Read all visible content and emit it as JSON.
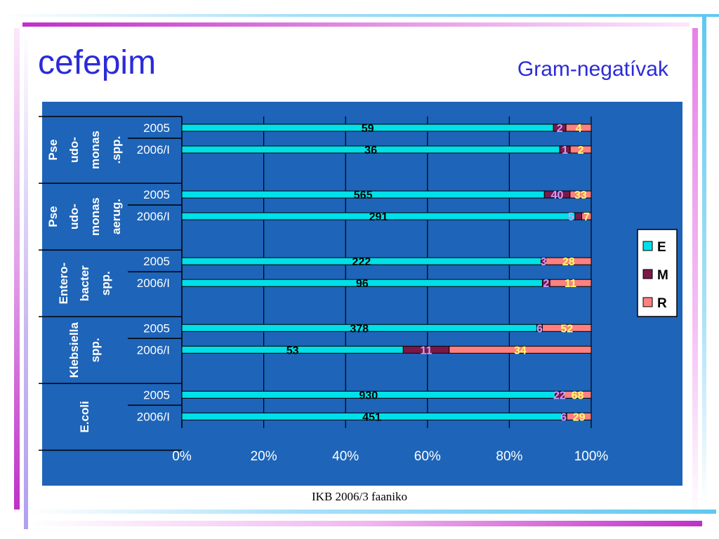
{
  "title": "cefepim",
  "subtitle": "Gram-negatívak",
  "footer": "IKB 2006/3 faaniko",
  "colors": {
    "E": "#00e0e8",
    "M": "#7a1848",
    "R": "#ff8080",
    "background": "#1e64b8",
    "title": "#2b2bd8"
  },
  "chart_data": {
    "type": "bar",
    "orientation": "horizontal",
    "stacked": "percent",
    "x_ticks": [
      "0%",
      "20%",
      "40%",
      "60%",
      "80%",
      "100%"
    ],
    "xlim": [
      0,
      100
    ],
    "grid": true,
    "legend": {
      "position": "right",
      "entries": [
        "E",
        "M",
        "R"
      ]
    },
    "groups": [
      {
        "label_lines": [
          "Pse",
          "udo-",
          "monas",
          ".spp."
        ],
        "rows": [
          {
            "label": "2005",
            "E": 59,
            "M": 2,
            "R": 4
          },
          {
            "label": "2006/I",
            "E": 36,
            "M": 1,
            "R": 2
          }
        ]
      },
      {
        "label_lines": [
          "Pse",
          "udo-",
          "monas",
          "aerug."
        ],
        "rows": [
          {
            "label": "2005",
            "E": 565,
            "M": 40,
            "R": 33
          },
          {
            "label": "2006/I",
            "E": 291,
            "M": 5,
            "R": 7
          }
        ]
      },
      {
        "label_lines": [
          "Entero-",
          "bacter",
          "spp."
        ],
        "rows": [
          {
            "label": "2005",
            "E": 222,
            "M": 3,
            "R": 28
          },
          {
            "label": "2006/I",
            "E": 96,
            "M": 2,
            "R": 11
          }
        ]
      },
      {
        "label_lines": [
          "Klebsiella",
          "spp."
        ],
        "rows": [
          {
            "label": "2005",
            "E": 378,
            "M": 6,
            "R": 52
          },
          {
            "label": "2006/I",
            "E": 53,
            "M": 11,
            "R": 34
          }
        ]
      },
      {
        "label_lines": [
          "E.coli"
        ],
        "rows": [
          {
            "label": "2005",
            "E": 930,
            "M": 22,
            "R": 68
          },
          {
            "label": "2006/I",
            "E": 451,
            "M": 6,
            "R": 29
          }
        ]
      }
    ]
  }
}
